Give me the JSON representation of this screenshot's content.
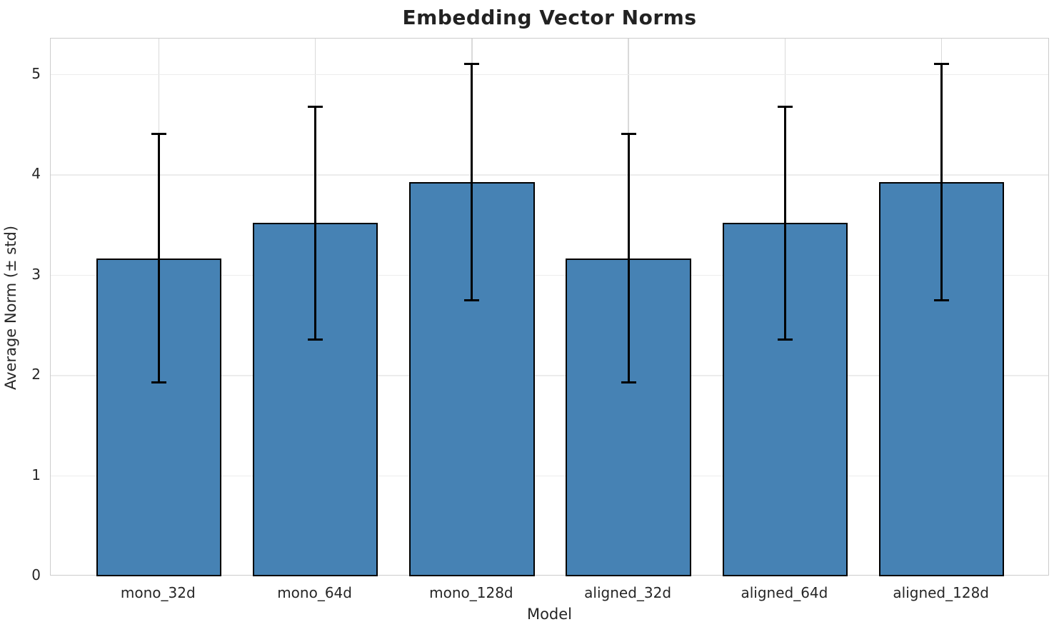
{
  "chart_data": {
    "type": "bar",
    "title": "Embedding Vector Norms",
    "xlabel": "Model",
    "ylabel": "Average Norm (± std)",
    "categories": [
      "mono_32d",
      "mono_64d",
      "mono_128d",
      "aligned_32d",
      "aligned_64d",
      "aligned_128d"
    ],
    "values": [
      3.17,
      3.52,
      3.93,
      3.17,
      3.52,
      3.93
    ],
    "errors": [
      1.24,
      1.16,
      1.18,
      1.24,
      1.16,
      1.18
    ],
    "yticks": [
      0,
      1,
      2,
      3,
      4,
      5
    ],
    "ylim": [
      0,
      5.36
    ],
    "xlim": [
      -0.69,
      5.69
    ],
    "bar_width_units": 0.8,
    "grid": "on",
    "legend": "none",
    "colors": {
      "bar_fill": "#4682b4",
      "bar_edge": "#000000",
      "error_bar": "#000000",
      "h_grid": "#ececec",
      "v_grid": "#d9d9d9",
      "spine": "#cccccc",
      "text": "#262626",
      "title_text": "#222222",
      "background": "#ffffff"
    }
  }
}
